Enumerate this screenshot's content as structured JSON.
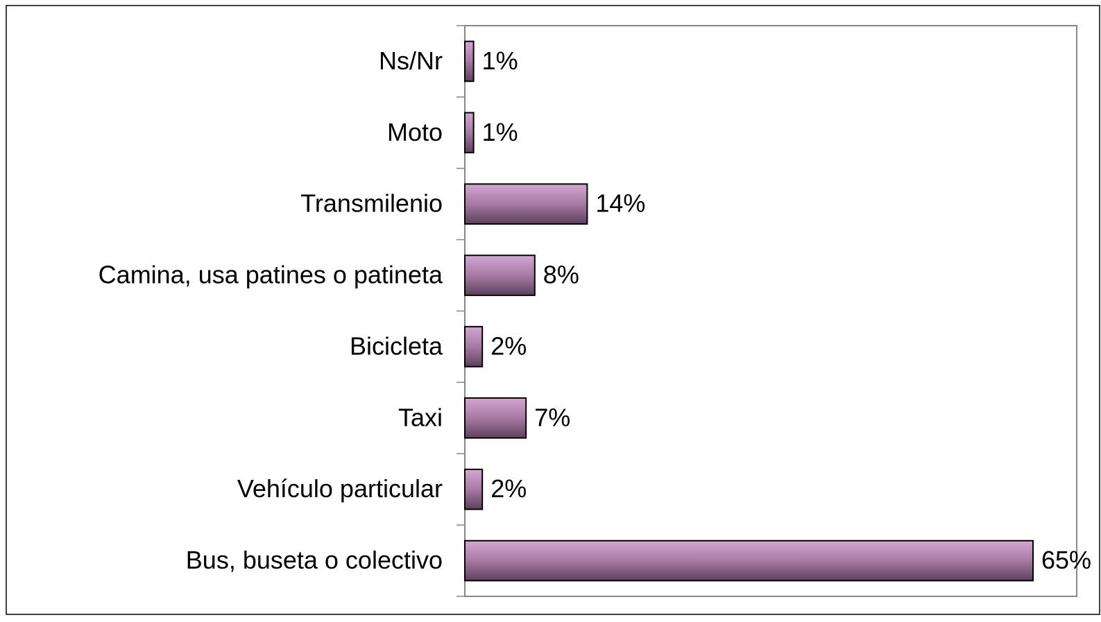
{
  "chart_data": {
    "type": "bar",
    "orientation": "horizontal",
    "categories": [
      "Ns/Nr",
      "Moto",
      "Transmilenio",
      "Camina, usa patines o patineta",
      "Bicicleta",
      "Taxi",
      "Vehículo particular",
      "Bus, buseta o colectivo"
    ],
    "values": [
      1,
      1,
      14,
      8,
      2,
      7,
      2,
      65
    ],
    "value_labels": [
      "1%",
      "1%",
      "14%",
      "8%",
      "2%",
      "7%",
      "2%",
      "65%"
    ],
    "color": "#a77aa4",
    "xlim": [
      0,
      70
    ]
  }
}
